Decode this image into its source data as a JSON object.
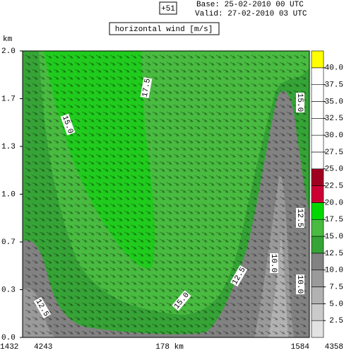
{
  "chart_data": {
    "type": "contour",
    "run_label": "+51",
    "base": "Base: 25-02-2010  00 UTC",
    "valid": "Valid: 27-02-2010  03 UTC",
    "title": "horizontal wind [m/s]",
    "y_unit": "km",
    "ylim": [
      0,
      2
    ],
    "yticks": [
      {
        "value": 0,
        "label": "0.0"
      },
      {
        "value": 0.3333,
        "label": "0.3"
      },
      {
        "value": 0.6667,
        "label": "0.7"
      },
      {
        "value": 1,
        "label": "1.0"
      },
      {
        "value": 1.3333,
        "label": "1.3"
      },
      {
        "value": 1.6667,
        "label": "1.7"
      },
      {
        "value": 2,
        "label": "2.0"
      }
    ],
    "x_labels": [
      "1432",
      "4243",
      "178 km",
      "1584",
      "4358"
    ],
    "contour_labels": [
      "12.5",
      "15.0",
      "12.5",
      "10.0",
      "15.0",
      "17.5",
      "15.0",
      "12.5",
      "10.0"
    ],
    "clim": [
      0,
      42.5
    ],
    "colorbar_ticks": [
      2.5,
      {
        "value": 5,
        "label": "5.0"
      },
      7.5,
      {
        "value": 10,
        "label": "10.0"
      },
      12.5,
      {
        "value": 15,
        "label": "15.0"
      },
      17.5,
      {
        "value": 20,
        "label": "20.0"
      },
      22.5,
      {
        "value": 25,
        "label": "25.0"
      },
      27.5,
      {
        "value": 30,
        "label": "30.0"
      },
      32.5,
      {
        "value": 35,
        "label": "35.0"
      },
      37.5,
      {
        "value": 40,
        "label": "40.0"
      }
    ],
    "colors": [
      "#e2e2e2",
      "#cacaca",
      "#b2b2b2",
      "#9a9a9a",
      "#828282",
      "#36a336",
      "#48bb40",
      "#00d800",
      "#cc0033",
      "#a00020",
      "#ffffff",
      "#ffffff",
      "#ffffff",
      "#ffffff",
      "#ffffff",
      "#ffffff",
      "#ffff00"
    ]
  }
}
